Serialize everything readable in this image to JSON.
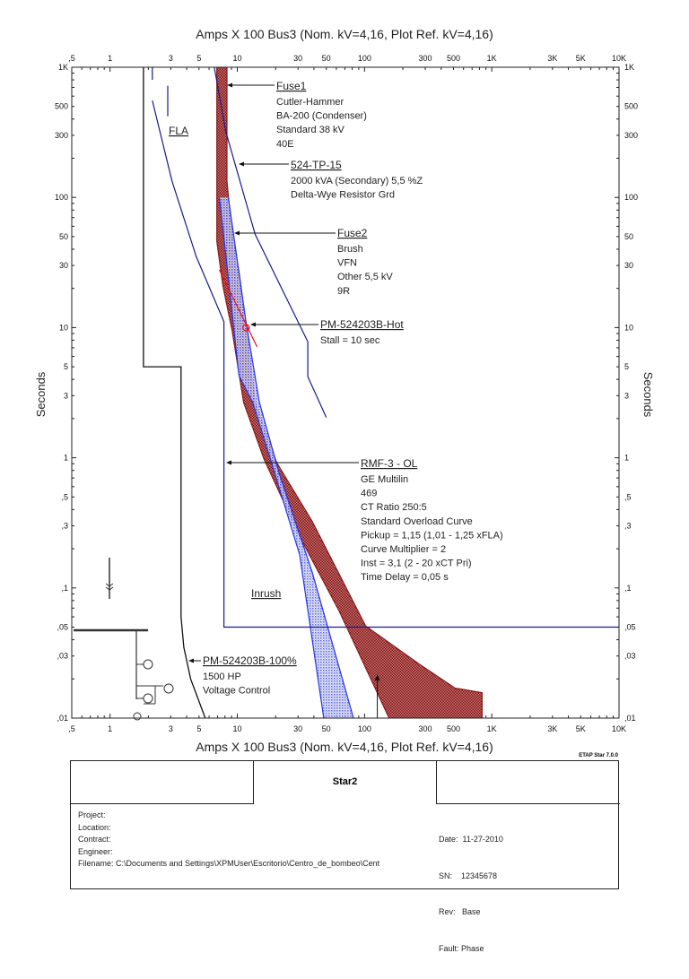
{
  "chart_data": {
    "type": "line",
    "title_top": "Amps  X  100   Bus3 (Nom. kV=4,16, Plot Ref. kV=4,16)",
    "title_bottom": "Amps  X  100   Bus3 (Nom. kV=4,16, Plot Ref. kV=4,16)",
    "xlabel": "Amps  X  100",
    "ylabel": "Seconds",
    "x_scale": "log",
    "y_scale": "log",
    "xlim": [
      0.5,
      10000
    ],
    "ylim": [
      0.01,
      1000
    ],
    "x_ticks": [
      {
        "v": 0.5,
        "label": ",5"
      },
      {
        "v": 1,
        "label": "1"
      },
      {
        "v": 3,
        "label": "3"
      },
      {
        "v": 5,
        "label": "5"
      },
      {
        "v": 10,
        "label": "10"
      },
      {
        "v": 30,
        "label": "30"
      },
      {
        "v": 50,
        "label": "50"
      },
      {
        "v": 100,
        "label": "100"
      },
      {
        "v": 300,
        "label": "300"
      },
      {
        "v": 500,
        "label": "500"
      },
      {
        "v": 1000,
        "label": "1K"
      },
      {
        "v": 3000,
        "label": "3K"
      },
      {
        "v": 5000,
        "label": "5K"
      },
      {
        "v": 10000,
        "label": "10K"
      }
    ],
    "y_ticks": [
      {
        "v": 1000,
        "label": "1K"
      },
      {
        "v": 500,
        "label": "500"
      },
      {
        "v": 300,
        "label": "300"
      },
      {
        "v": 100,
        "label": "100"
      },
      {
        "v": 50,
        "label": "50"
      },
      {
        "v": 30,
        "label": "30"
      },
      {
        "v": 10,
        "label": "10"
      },
      {
        "v": 5,
        "label": "5"
      },
      {
        "v": 3,
        "label": "3"
      },
      {
        "v": 1,
        "label": "1"
      },
      {
        "v": 0.5,
        "label": ",5"
      },
      {
        "v": 0.3,
        "label": ",3"
      },
      {
        "v": 0.1,
        "label": ",1"
      },
      {
        "v": 0.05,
        "label": ",05"
      },
      {
        "v": 0.03,
        "label": ",03"
      },
      {
        "v": 0.01,
        "label": ",01"
      }
    ],
    "colors": {
      "fuse1": "#8b1a1a",
      "fuse2": "#2233ee",
      "navy": "#1a1a8c",
      "motor": "#111111",
      "stall": "#ee1111"
    },
    "bands": [
      {
        "name": "Fuse1",
        "color": "#8b1a1a",
        "min": [
          [
            6.9,
            1000
          ],
          [
            6.9,
            46
          ],
          [
            7.7,
            21
          ],
          [
            9.1,
            9.5
          ],
          [
            11.2,
            2.67
          ],
          [
            16.2,
            0.98
          ],
          [
            30.9,
            0.248
          ],
          [
            62.9,
            0.067
          ],
          [
            156,
            0.01
          ]
        ],
        "max": [
          [
            8.3,
            1000
          ],
          [
            8.3,
            133
          ],
          [
            9.1,
            52
          ],
          [
            10.3,
            27
          ],
          [
            12.1,
            8.1
          ],
          [
            13.8,
            2.67
          ],
          [
            20.4,
            0.92
          ],
          [
            38.8,
            0.325
          ],
          [
            102,
            0.051
          ],
          [
            269,
            0.026
          ],
          [
            513,
            0.017
          ],
          [
            840,
            0.0157
          ],
          [
            840,
            0.01
          ]
        ]
      },
      {
        "name": "Fuse2",
        "color": "#2233ee",
        "min": [
          [
            7.24,
            100
          ],
          [
            8.8,
            17.9
          ],
          [
            10.3,
            4.3
          ],
          [
            13.2,
            2.67
          ],
          [
            18.2,
            0.98
          ],
          [
            30.9,
            0.18
          ],
          [
            47.8,
            0.01
          ]
        ],
        "max": [
          [
            8.5,
            100
          ],
          [
            11.7,
            11.1
          ],
          [
            14.9,
            2.67
          ],
          [
            21.4,
            0.75
          ],
          [
            38.8,
            0.132
          ],
          [
            81.8,
            0.01
          ]
        ]
      }
    ],
    "lines": [
      {
        "name": "524-TP-15",
        "color": "#1a1a8c",
        "points": [
          [
            6.6,
            1000
          ],
          [
            8.1,
            324
          ],
          [
            13.8,
            52
          ],
          [
            35.8,
            7.8
          ],
          [
            35.8,
            4.2
          ],
          [
            50,
            2.04
          ]
        ]
      },
      {
        "name": "RMF-3 - OL",
        "color": "#1a1a8c",
        "points": [
          [
            2.15,
            555
          ],
          [
            3.07,
            133
          ],
          [
            4.76,
            35
          ],
          [
            7.85,
            11.1
          ],
          [
            7.85,
            0.05
          ],
          [
            10000,
            0.05
          ]
        ]
      },
      {
        "name": "PM-524203B-100%",
        "color": "#111111",
        "points": [
          [
            1.83,
            1000
          ],
          [
            1.83,
            5
          ],
          [
            3.61,
            5
          ],
          [
            3.61,
            0.06
          ],
          [
            3.8,
            0.035
          ],
          [
            4.3,
            0.02
          ],
          [
            5.6,
            0.01
          ]
        ]
      },
      {
        "name": "FLA",
        "color": "#1a1a8c",
        "points": [
          [
            2.15,
            1000
          ],
          [
            2.15,
            800
          ]
        ]
      },
      {
        "name": "FLA",
        "color": "#1a1a8c",
        "points": [
          [
            2.84,
            720
          ],
          [
            2.84,
            420
          ]
        ]
      },
      {
        "name": "PM-524203B-Hot",
        "color": "#ee1111",
        "points": [
          [
            7.24,
            27.7
          ],
          [
            14.3,
            7.1
          ]
        ]
      }
    ],
    "stall_point": {
      "amps": 11.7,
      "seconds": 10
    },
    "inrush_arrow": {
      "amps": 126,
      "from": 0.01,
      "to": 0.021
    },
    "annotations": {
      "fuse1": {
        "title": "Fuse1",
        "lines": [
          "Cutler-Hammer",
          "BA-200 (Condenser)",
          "Standard  38 kV",
          "40E"
        ]
      },
      "tp15": {
        "title": "524-TP-15",
        "lines": [
          "2000 kVA (Secondary)  5,5 %Z",
          "Delta-Wye Resistor Grd"
        ]
      },
      "fuse2": {
        "title": "Fuse2",
        "lines": [
          "Brush",
          "VFN",
          "Other  5,5 kV",
          "9R"
        ]
      },
      "hot": {
        "title": "PM-524203B-Hot",
        "lines": [
          "Stall = 10 sec"
        ]
      },
      "rmf": {
        "title": "RMF-3 - OL",
        "lines": [
          "GE Multilin",
          "469",
          "CT Ratio 250:5",
          "Standard Overload Curve",
          "Pickup = 1,15 (1,01 - 1,25  xFLA)",
          "Curve Multiplier = 2",
          "Inst = 3,1 (2 - 20  xCT Pri)",
          "Time Delay = 0,05 s"
        ]
      },
      "motor": {
        "title": "PM-524203B-100%",
        "lines": [
          "1500 HP",
          "Voltage Control"
        ]
      },
      "fla": "FLA",
      "inrush": "Inrush"
    }
  },
  "footer": {
    "version": "ETAP Star 7.0.0",
    "name": "Star2",
    "left": [
      "Project:",
      "Location:",
      "Contract:",
      "Engineer:",
      "Filename: C:\\Documents and Settings\\XPMUser\\Escritorio\\Centro_de_bombeo\\Cent"
    ],
    "right": [
      "Date:  11-27-2010",
      "SN:    12345678",
      "Rev:   Base",
      "Fault: Phase"
    ]
  }
}
